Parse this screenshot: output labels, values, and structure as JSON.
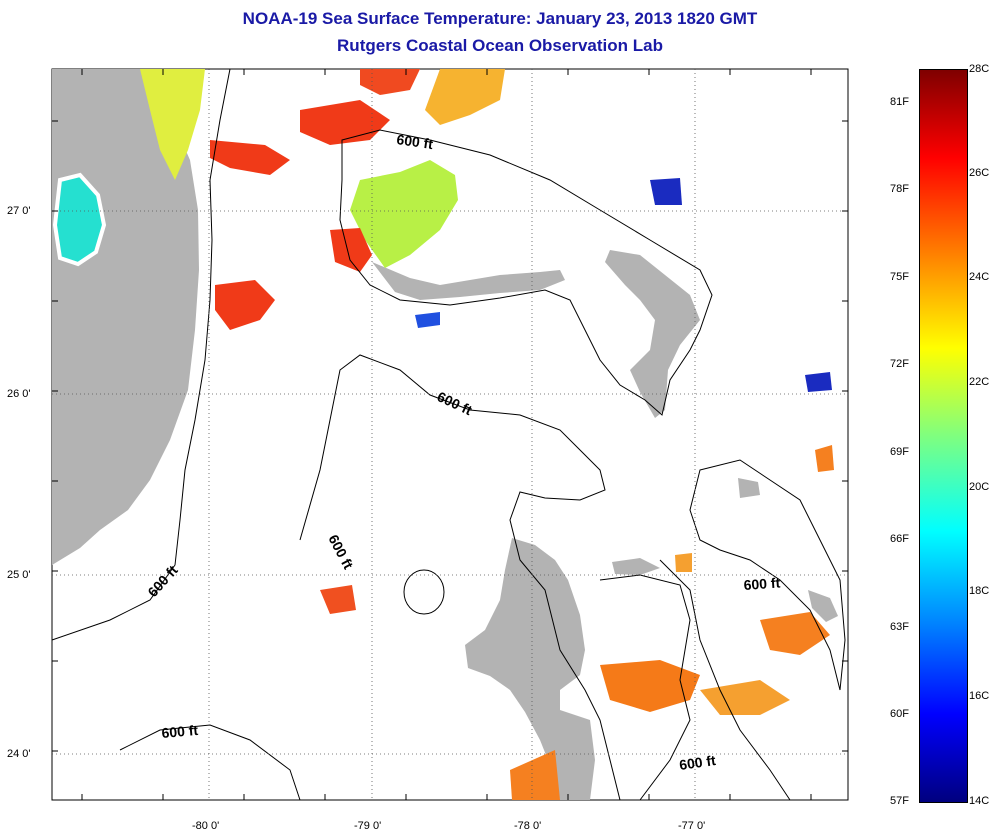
{
  "title": "NOAA-19 Sea Surface Temperature:  January 23, 2013 1820 GMT",
  "subtitle": "Rutgers Coastal Ocean Observation Lab",
  "map": {
    "x_ticks": [
      "-80 0'",
      "-79 0'",
      "-78 0'",
      "-77 0'"
    ],
    "y_ticks": [
      "27 0'",
      "26 0'",
      "25 0'",
      "24 0'"
    ],
    "contour_labels": [
      "600 ft",
      "600 ft",
      "600 ft",
      "600 ft",
      "600 ft",
      "600 ft"
    ]
  },
  "colorbar": {
    "fahrenheit": [
      "81F",
      "78F",
      "75F",
      "72F",
      "69F",
      "66F",
      "63F",
      "60F",
      "57F"
    ],
    "celsius": [
      "28C",
      "26C",
      "24C",
      "22C",
      "20C",
      "18C",
      "16C",
      "14C"
    ]
  },
  "colors": {
    "title": "#1a1aa6",
    "land": "#b3b3b3"
  }
}
